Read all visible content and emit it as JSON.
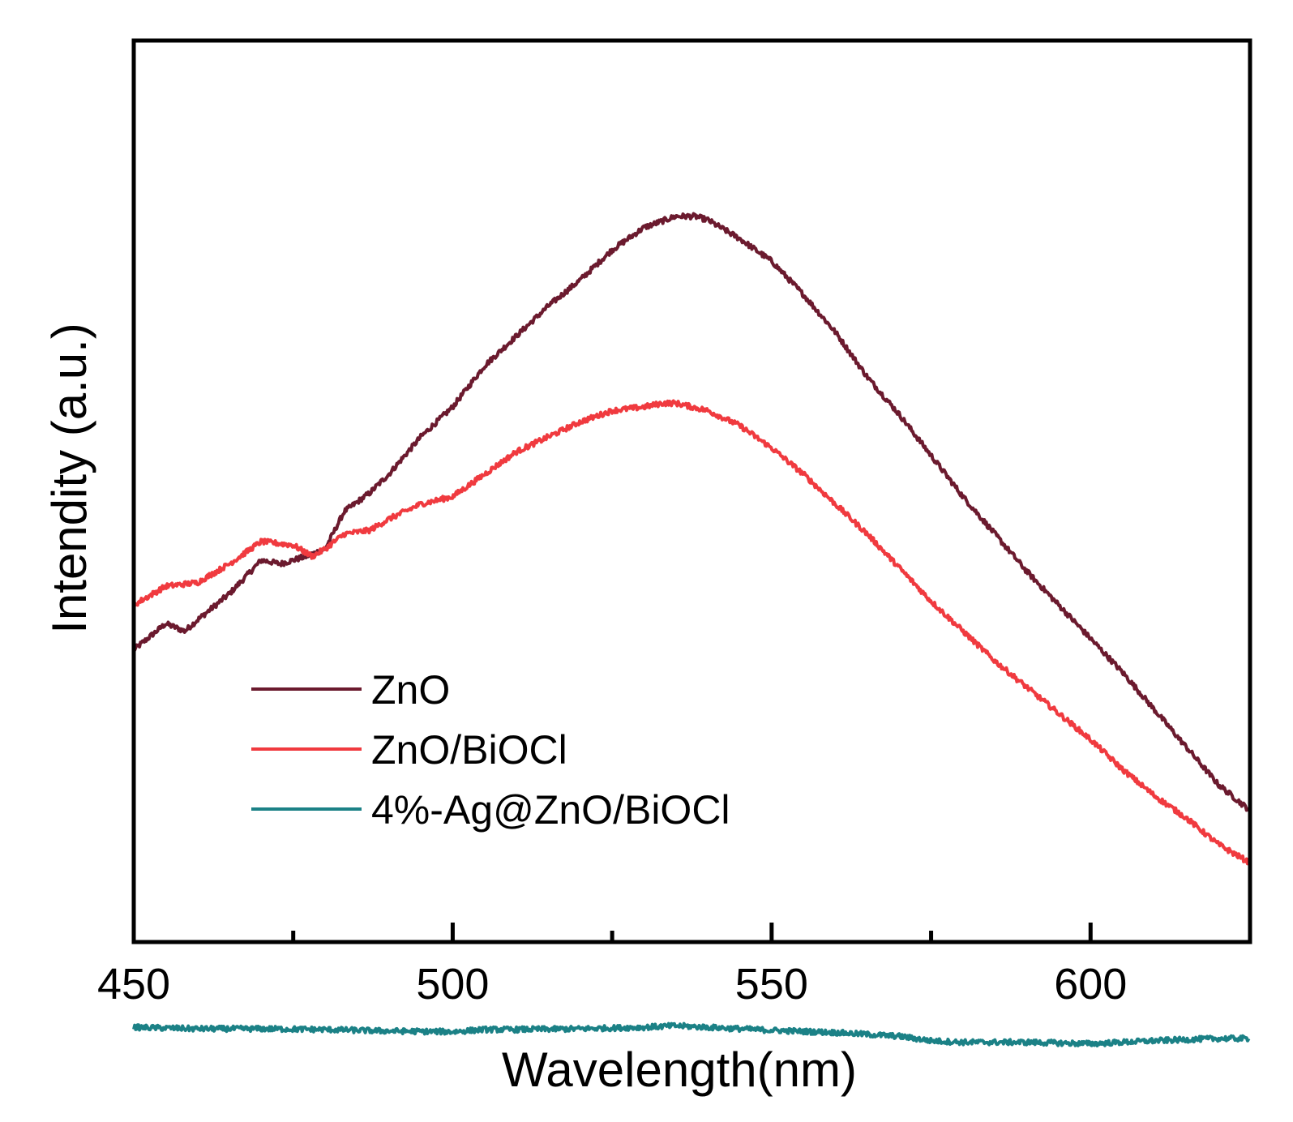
{
  "chart_data": {
    "type": "line",
    "title": "",
    "xlabel": "Wavelength(nm)",
    "ylabel": "Intendity (a.u.)",
    "xlim": [
      450,
      625
    ],
    "ylim": [
      0,
      100
    ],
    "xticks_major": [
      450,
      500,
      550,
      600
    ],
    "xtick_labels": [
      "450",
      "500",
      "550",
      "600"
    ],
    "xticks_minor": [
      475,
      525,
      575
    ],
    "yticks_labeled": false,
    "grid": false,
    "legend_position": "lower-left",
    "series": [
      {
        "name": "ZnO",
        "color": "#6b1a2e",
        "x": [
          450,
          455,
          458,
          460,
          465,
          470,
          473,
          477,
          480,
          483,
          487,
          490,
          495,
          500,
          505,
          510,
          515,
          520,
          525,
          530,
          535,
          538,
          540,
          545,
          550,
          555,
          560,
          565,
          570,
          575,
          580,
          585,
          590,
          595,
          600,
          605,
          610,
          615,
          620,
          625
        ],
        "values": [
          31.5,
          35,
          34,
          35.5,
          39,
          43.5,
          43,
          44,
          45,
          50,
          52.5,
          55,
          60,
          64,
          69.5,
          73.5,
          77.5,
          81,
          85,
          88,
          89.5,
          89.5,
          89,
          86.5,
          83.5,
          79,
          74,
          68,
          63,
          57.5,
          52,
          47,
          42,
          37.5,
          33,
          28.5,
          23.5,
          18.5,
          13.5,
          10
        ]
      },
      {
        "name": "ZnO/BiOCl",
        "color": "#f03a3f",
        "x": [
          450,
          455,
          460,
          465,
          470,
          475,
          478,
          480,
          483,
          487,
          490,
          495,
          500,
          505,
          510,
          515,
          520,
          525,
          530,
          533,
          535,
          540,
          545,
          550,
          555,
          560,
          565,
          570,
          575,
          580,
          585,
          590,
          595,
          600,
          605,
          610,
          615,
          620,
          625
        ],
        "values": [
          37.5,
          40,
          40.5,
          43,
          46,
          45.5,
          44,
          45,
          47,
          47.5,
          49,
          51,
          52,
          55,
          58,
          60,
          62,
          63.5,
          64,
          64.5,
          64.5,
          63.5,
          61.5,
          58.5,
          55,
          51,
          47,
          42.5,
          38,
          34,
          30,
          26.5,
          23,
          19.5,
          15.5,
          12,
          9,
          5.5,
          3
        ]
      },
      {
        "name": "4%-Ag@ZnO/BiOCl",
        "color": "#1b8186",
        "x": [
          450,
          460,
          470,
          480,
          490,
          500,
          505,
          510,
          520,
          530,
          535,
          540,
          550,
          560,
          570,
          575,
          580,
          590,
          600,
          610,
          620,
          625
        ],
        "values": [
          -19,
          -19.2,
          -19.2,
          -19.3,
          -19.5,
          -19.6,
          -19.3,
          -19.3,
          -19.2,
          -19,
          -18.8,
          -19,
          -19.4,
          -19.7,
          -20.2,
          -20.8,
          -21,
          -21,
          -21.2,
          -20.8,
          -20.5,
          -20.5
        ]
      }
    ]
  }
}
